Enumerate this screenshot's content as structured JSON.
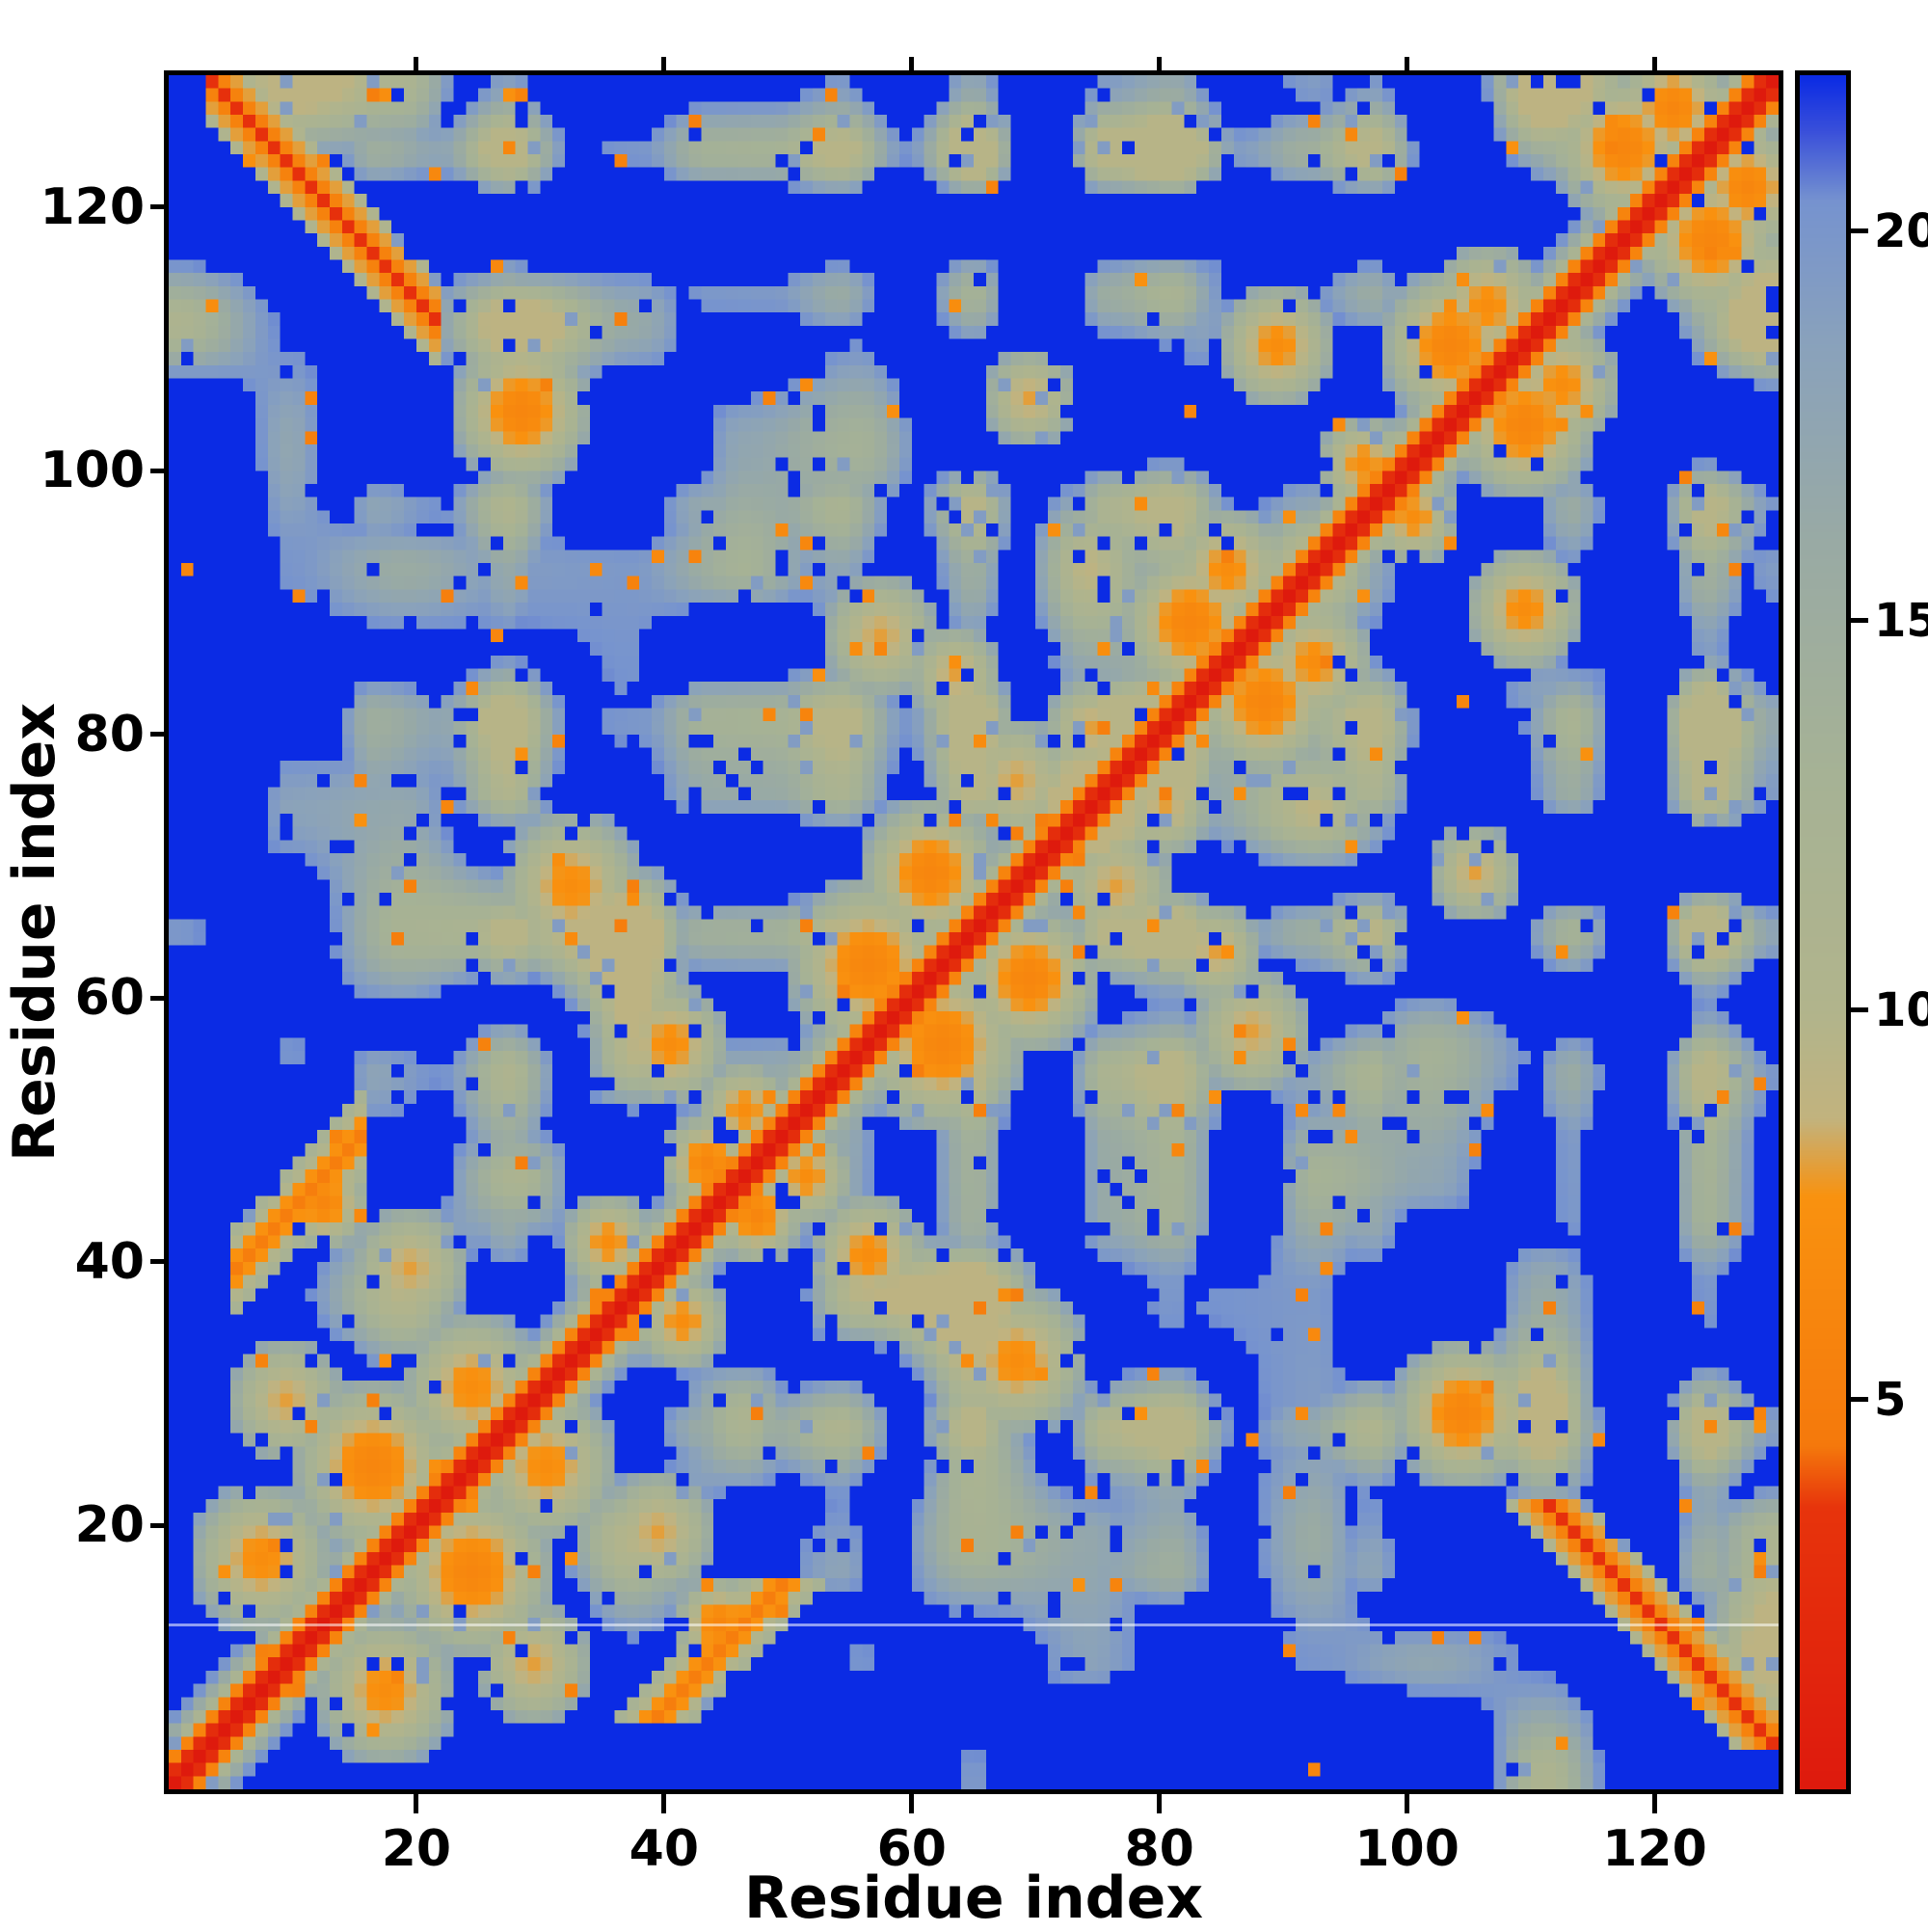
{
  "figure": {
    "background": "#ffffff",
    "frame_color": "#000000",
    "text_color": "#000000"
  },
  "chart_data": {
    "type": "heatmap",
    "title": "",
    "xlabel": "Residue index",
    "ylabel": "Residue index",
    "x_range": [
      1,
      130
    ],
    "y_range": [
      1,
      130
    ],
    "x_ticks": [
      20,
      40,
      60,
      80,
      100,
      120
    ],
    "y_ticks": [
      20,
      40,
      60,
      80,
      100,
      120
    ],
    "grid": false,
    "colorbar": {
      "range": [
        0,
        22
      ],
      "ticks": [
        5,
        10,
        15,
        20
      ],
      "stops": [
        [
          0,
          "#de1a0d"
        ],
        [
          3.6,
          "#e7340c"
        ],
        [
          4.4,
          "#f5790c"
        ],
        [
          7.6,
          "#f9920f"
        ],
        [
          8.6,
          "#c2b37e"
        ],
        [
          10,
          "#b1b48c"
        ],
        [
          13,
          "#a6b295"
        ],
        [
          16,
          "#99aaa4"
        ],
        [
          18.5,
          "#8aa2bb"
        ],
        [
          20.4,
          "#7693cf"
        ],
        [
          21.3,
          "#3a50da"
        ],
        [
          22,
          "#0b2be4"
        ]
      ]
    },
    "matrix": {
      "size": 130,
      "symmetric": true,
      "value_cap": 22,
      "diagonal_value": 0,
      "generator": {
        "seed_field": 77041,
        "seed_speckle": 90210,
        "diagonal_slope": 4,
        "cross_threshold": 0.46,
        "noise_threshold": 0.6,
        "lattice_1d": 24,
        "lattice_2d": 14
      },
      "features": {
        "antiparallel": [
          {
            "sum": 134,
            "i0": 4,
            "i1": 22,
            "w": 3,
            "v": 3
          }
        ],
        "parallel": [
          {
            "diff": 34,
            "i0": 6,
            "i1": 16,
            "w": 3,
            "v": 5
          }
        ],
        "blobs": [
          {
            "x": 8,
            "y": 18,
            "r": 6,
            "v": 7
          },
          {
            "x": 17,
            "y": 25,
            "r": 7,
            "v": 6
          },
          {
            "x": 25,
            "y": 31,
            "r": 6,
            "v": 7
          },
          {
            "x": 10,
            "y": 30,
            "r": 5,
            "v": 8
          },
          {
            "x": 20,
            "y": 40,
            "r": 5,
            "v": 8
          },
          {
            "x": 13,
            "y": 45,
            "r": 4,
            "v": 6
          },
          {
            "x": 36,
            "y": 42,
            "r": 4,
            "v": 7
          },
          {
            "x": 44,
            "y": 48,
            "r": 4,
            "v": 6
          },
          {
            "x": 47,
            "y": 52,
            "r": 4,
            "v": 7
          },
          {
            "x": 41,
            "y": 57,
            "r": 5,
            "v": 7
          },
          {
            "x": 33,
            "y": 69,
            "r": 6,
            "v": 7
          },
          {
            "x": 29,
            "y": 105,
            "r": 6,
            "v": 6
          },
          {
            "x": 57,
            "y": 63,
            "r": 7,
            "v": 6
          },
          {
            "x": 62,
            "y": 70,
            "r": 6,
            "v": 6
          },
          {
            "x": 66,
            "y": 29,
            "r": 5,
            "v": 7
          },
          {
            "x": 69,
            "y": 77,
            "r": 5,
            "v": 8
          },
          {
            "x": 58,
            "y": 88,
            "r": 5,
            "v": 8
          },
          {
            "x": 64,
            "y": 85,
            "r": 4,
            "v": 8
          },
          {
            "x": 75,
            "y": 81,
            "r": 4,
            "v": 8
          },
          {
            "x": 83,
            "y": 89,
            "r": 6,
            "v": 6
          },
          {
            "x": 86,
            "y": 93,
            "r": 5,
            "v": 7
          },
          {
            "x": 97,
            "y": 101,
            "r": 4,
            "v": 7
          },
          {
            "x": 90,
            "y": 110,
            "r": 5,
            "v": 7
          },
          {
            "x": 70,
            "y": 106,
            "r": 4,
            "v": 8
          },
          {
            "x": 104,
            "y": 110,
            "r": 6,
            "v": 6
          },
          {
            "x": 107,
            "y": 113,
            "r": 5,
            "v": 7
          },
          {
            "x": 118,
            "y": 125,
            "r": 6,
            "v": 6
          },
          {
            "x": 122,
            "y": 128,
            "r": 5,
            "v": 6
          }
        ]
      },
      "artifact_line": {
        "row": 12.5,
        "color": "rgba(255,255,255,0.55)"
      }
    }
  }
}
